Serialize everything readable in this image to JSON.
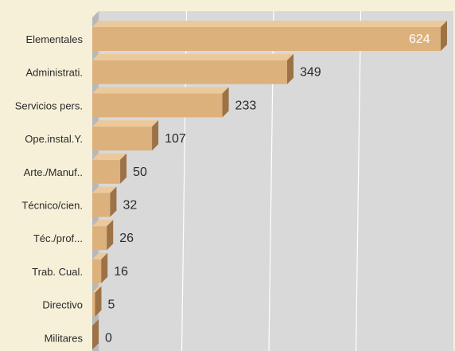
{
  "chart_data": {
    "type": "bar",
    "orientation": "horizontal",
    "categories": [
      "Elementales",
      "Administrati.",
      "Servicios pers.",
      "Ope.instal.Y.",
      "Arte./Manuf..",
      "Técnico/cien.",
      "Téc./prof...",
      "Trab. Cual.",
      "Directivo",
      "Militares"
    ],
    "values": [
      624,
      349,
      233,
      107,
      50,
      32,
      26,
      16,
      5,
      0
    ],
    "xlim": [
      0,
      624
    ],
    "grid": true,
    "legend": "none",
    "colors": {
      "bar_front": "#ddb17c",
      "bar_top": "#ecc99b",
      "bar_side": "#9c7246",
      "plot_background": "#d9d9d9",
      "page_background": "#f6f0d8",
      "grid": "#ffffff"
    }
  }
}
